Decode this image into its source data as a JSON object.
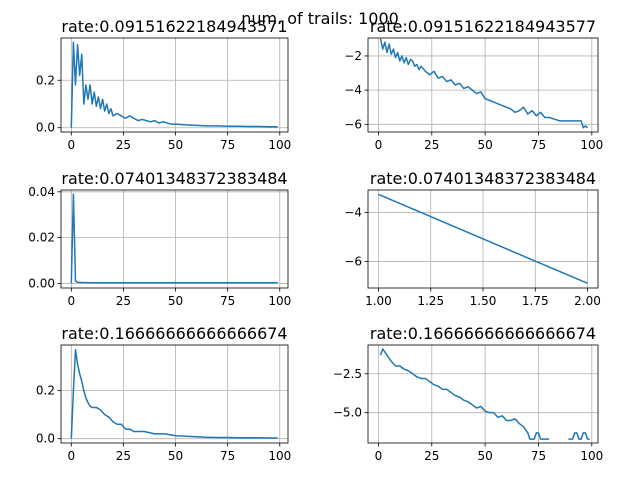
{
  "suptitle": "num. of trails: 1000",
  "chart_data": [
    {
      "type": "line",
      "title": "rate:0.09151622184943571",
      "xlim": [
        -4.95,
        103.95
      ],
      "ylim": [
        -0.018,
        0.378
      ],
      "grid": true,
      "xticks": [
        0,
        25,
        50,
        75,
        100
      ],
      "yticks": [
        0.0,
        0.2
      ],
      "ytick_labels": [
        "0.0",
        "0.2"
      ],
      "series": [
        {
          "x": [
            0,
            1,
            2,
            3,
            4,
            5,
            6,
            7,
            8,
            9,
            10,
            11,
            12,
            13,
            14,
            15,
            16,
            17,
            18,
            19,
            20,
            22,
            24,
            26,
            28,
            30,
            32,
            34,
            36,
            38,
            40,
            42,
            44,
            46,
            48,
            50,
            55,
            60,
            65,
            70,
            75,
            80,
            85,
            90,
            95,
            99
          ],
          "y": [
            0.0,
            0.36,
            0.18,
            0.35,
            0.22,
            0.31,
            0.1,
            0.18,
            0.12,
            0.18,
            0.1,
            0.15,
            0.09,
            0.13,
            0.08,
            0.12,
            0.07,
            0.1,
            0.06,
            0.08,
            0.05,
            0.06,
            0.05,
            0.04,
            0.05,
            0.04,
            0.03,
            0.035,
            0.03,
            0.025,
            0.03,
            0.02,
            0.025,
            0.02,
            0.015,
            0.015,
            0.012,
            0.01,
            0.008,
            0.008,
            0.006,
            0.006,
            0.005,
            0.005,
            0.004,
            0.004
          ]
        }
      ]
    },
    {
      "type": "line",
      "title": "rate:0.09151622184943577",
      "xlim": [
        -4.9,
        102.9
      ],
      "ylim": [
        -6.45,
        -0.95
      ],
      "grid": true,
      "xticks": [
        0,
        25,
        50,
        75,
        100
      ],
      "yticks": [
        -6,
        -4,
        -2
      ],
      "ytick_labels": [
        "−6",
        "−4",
        "−2"
      ],
      "series": [
        {
          "x": [
            1,
            2,
            3,
            4,
            5,
            6,
            7,
            8,
            9,
            10,
            11,
            12,
            13,
            14,
            15,
            16,
            17,
            18,
            19,
            20,
            22,
            24,
            26,
            28,
            30,
            32,
            34,
            36,
            38,
            40,
            42,
            44,
            46,
            48,
            50,
            52,
            54,
            56,
            58,
            60,
            62,
            64,
            66,
            68,
            70,
            72,
            74,
            76,
            78,
            80,
            85,
            90,
            95,
            96,
            97,
            98
          ],
          "y": [
            -1.0,
            -1.6,
            -1.2,
            -1.8,
            -1.3,
            -1.9,
            -1.6,
            -2.1,
            -1.8,
            -2.3,
            -2.0,
            -2.4,
            -2.1,
            -2.5,
            -2.2,
            -2.3,
            -2.6,
            -2.5,
            -2.8,
            -2.6,
            -2.9,
            -3.1,
            -2.9,
            -3.3,
            -3.2,
            -3.5,
            -3.4,
            -3.7,
            -3.6,
            -3.9,
            -3.8,
            -4.0,
            -4.2,
            -4.1,
            -4.5,
            -4.6,
            -4.7,
            -4.8,
            -4.9,
            -5.0,
            -5.1,
            -5.3,
            -5.2,
            -5.0,
            -5.4,
            -5.2,
            -5.5,
            -5.3,
            -5.6,
            -5.6,
            -5.8,
            -5.8,
            -5.8,
            -6.2,
            -6.1,
            -6.2
          ]
        }
      ]
    },
    {
      "type": "line",
      "title": "rate:0.07401348372383484",
      "xlim": [
        -4.95,
        103.95
      ],
      "ylim": [
        -0.002,
        0.0408
      ],
      "grid": true,
      "xticks": [
        0,
        25,
        50,
        75,
        100
      ],
      "yticks": [
        0.0,
        0.02,
        0.04
      ],
      "ytick_labels": [
        "0.00",
        "0.02",
        "0.04"
      ],
      "series": [
        {
          "x": [
            0,
            1,
            2,
            3,
            5,
            10,
            20,
            50,
            99
          ],
          "y": [
            0.0,
            0.039,
            0.001,
            0.0005,
            0.0004,
            0.0003,
            0.0003,
            0.0003,
            0.0003
          ]
        }
      ]
    },
    {
      "type": "line",
      "title": "rate:0.07401348372383484",
      "xlim": [
        0.95,
        2.05
      ],
      "ylim": [
        -7.08,
        -3.08
      ],
      "grid": true,
      "xticks": [
        1.0,
        1.25,
        1.5,
        1.75,
        2.0
      ],
      "xtick_labels": [
        "1.00",
        "1.25",
        "1.50",
        "1.75",
        "2.00"
      ],
      "yticks": [
        -6,
        -4
      ],
      "ytick_labels": [
        "−6",
        "−4"
      ],
      "series": [
        {
          "x": [
            1,
            2
          ],
          "y": [
            -3.26,
            -6.89
          ]
        }
      ]
    },
    {
      "type": "line",
      "title": "rate:0.16666666666666674",
      "xlim": [
        -4.95,
        103.95
      ],
      "ylim": [
        -0.018,
        0.39
      ],
      "grid": true,
      "xticks": [
        0,
        25,
        50,
        75,
        100
      ],
      "yticks": [
        0.0,
        0.2
      ],
      "ytick_labels": [
        "0.0",
        "0.2"
      ],
      "series": [
        {
          "x": [
            0,
            1,
            2,
            3,
            4,
            5,
            6,
            7,
            8,
            9,
            10,
            12,
            14,
            16,
            18,
            20,
            22,
            24,
            26,
            28,
            30,
            35,
            40,
            45,
            50,
            55,
            60,
            65,
            70,
            75,
            80,
            85,
            90,
            95,
            99
          ],
          "y": [
            0.0,
            0.2,
            0.37,
            0.31,
            0.27,
            0.24,
            0.2,
            0.17,
            0.15,
            0.135,
            0.13,
            0.13,
            0.12,
            0.1,
            0.09,
            0.07,
            0.06,
            0.06,
            0.04,
            0.04,
            0.03,
            0.03,
            0.02,
            0.02,
            0.012,
            0.01,
            0.008,
            0.006,
            0.005,
            0.005,
            0.004,
            0.004,
            0.004,
            0.003,
            0.003
          ]
        }
      ]
    },
    {
      "type": "line",
      "title": "rate:0.16666666666666674",
      "xlim": [
        -4.9,
        102.9
      ],
      "ylim": [
        -6.95,
        -0.65
      ],
      "grid": true,
      "xticks": [
        0,
        25,
        50,
        75,
        100
      ],
      "yticks": [
        -5.0,
        -2.5
      ],
      "ytick_labels": [
        "−5.0",
        "−2.5"
      ],
      "series": [
        {
          "x": [
            1,
            2,
            3,
            4,
            5,
            6,
            8,
            10,
            12,
            14,
            16,
            18,
            20,
            22,
            24,
            26,
            28,
            30,
            32,
            34,
            36,
            38,
            40,
            42,
            44,
            46,
            48,
            50,
            52,
            54,
            56,
            58,
            60,
            62,
            64,
            66,
            68,
            69,
            70,
            71,
            72,
            73,
            74,
            75,
            76,
            77,
            78,
            79,
            80
          ],
          "y": [
            -1.3,
            -0.9,
            -1.1,
            -1.3,
            -1.5,
            -1.7,
            -2.0,
            -2.0,
            -2.2,
            -2.3,
            -2.5,
            -2.7,
            -2.8,
            -2.8,
            -3.0,
            -3.2,
            -3.3,
            -3.5,
            -3.5,
            -3.7,
            -3.9,
            -4.0,
            -4.2,
            -4.3,
            -4.5,
            -4.7,
            -4.6,
            -4.9,
            -5.0,
            -5.0,
            -5.3,
            -5.2,
            -5.5,
            -5.5,
            -5.4,
            -5.7,
            -5.9,
            -6.1,
            -6.3,
            -6.7,
            -6.7,
            -6.7,
            -6.3,
            -6.3,
            -6.7,
            -6.7,
            -6.7,
            -6.7,
            -6.7
          ]
        },
        {
          "x": [
            89,
            90,
            91,
            92,
            93,
            94,
            95,
            96,
            97,
            98,
            99
          ],
          "y": [
            -6.7,
            -6.7,
            -6.7,
            -6.3,
            -6.3,
            -6.7,
            -6.7,
            -6.3,
            -6.3,
            -6.7,
            -6.7
          ]
        }
      ]
    }
  ]
}
